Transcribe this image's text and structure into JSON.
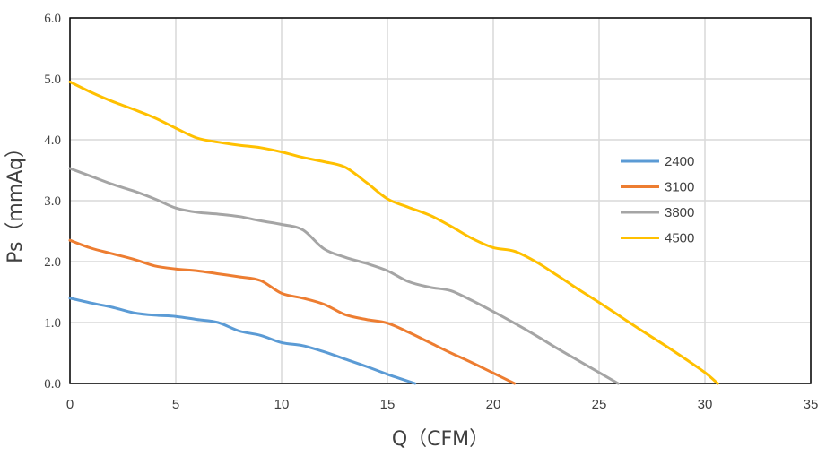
{
  "chart_data": {
    "type": "line",
    "xlabel": "Q（CFM）",
    "ylabel": "Ps（mmAq）",
    "xlim": [
      0,
      35
    ],
    "ylim": [
      0,
      6
    ],
    "xticks": [
      "0",
      "5",
      "10",
      "15",
      "20",
      "25",
      "30",
      "35"
    ],
    "yticks": [
      "0.0",
      "1.0",
      "2.0",
      "3.0",
      "4.0",
      "5.0",
      "6.0"
    ],
    "grid": true,
    "legend_position": "right",
    "series": [
      {
        "name": "2400",
        "color": "#5b9bd5",
        "points": [
          [
            0,
            1.4
          ],
          [
            1,
            1.32
          ],
          [
            2,
            1.25
          ],
          [
            3,
            1.16
          ],
          [
            4,
            1.12
          ],
          [
            5,
            1.1
          ],
          [
            6,
            1.05
          ],
          [
            7,
            1.0
          ],
          [
            8,
            0.86
          ],
          [
            9,
            0.79
          ],
          [
            10,
            0.67
          ],
          [
            11,
            0.62
          ],
          [
            12,
            0.52
          ],
          [
            13,
            0.4
          ],
          [
            14,
            0.28
          ],
          [
            15,
            0.15
          ],
          [
            16.3,
            0.0
          ]
        ]
      },
      {
        "name": "3100",
        "color": "#ed7d31",
        "points": [
          [
            0,
            2.35
          ],
          [
            1,
            2.22
          ],
          [
            2,
            2.13
          ],
          [
            3,
            2.04
          ],
          [
            4,
            1.93
          ],
          [
            5,
            1.88
          ],
          [
            6,
            1.85
          ],
          [
            7,
            1.8
          ],
          [
            8,
            1.75
          ],
          [
            9,
            1.69
          ],
          [
            10,
            1.48
          ],
          [
            11,
            1.4
          ],
          [
            12,
            1.3
          ],
          [
            13,
            1.13
          ],
          [
            14,
            1.05
          ],
          [
            15,
            0.99
          ],
          [
            16,
            0.84
          ],
          [
            17,
            0.67
          ],
          [
            18,
            0.5
          ],
          [
            19,
            0.34
          ],
          [
            20,
            0.17
          ],
          [
            21,
            0.0
          ]
        ]
      },
      {
        "name": "3800",
        "color": "#a5a5a5",
        "points": [
          [
            0,
            3.53
          ],
          [
            1,
            3.4
          ],
          [
            2,
            3.27
          ],
          [
            3,
            3.16
          ],
          [
            4,
            3.03
          ],
          [
            5,
            2.88
          ],
          [
            6,
            2.81
          ],
          [
            7,
            2.78
          ],
          [
            8,
            2.74
          ],
          [
            9,
            2.67
          ],
          [
            10,
            2.61
          ],
          [
            11,
            2.52
          ],
          [
            12,
            2.21
          ],
          [
            13,
            2.07
          ],
          [
            14,
            1.97
          ],
          [
            15,
            1.85
          ],
          [
            16,
            1.67
          ],
          [
            17,
            1.58
          ],
          [
            18,
            1.52
          ],
          [
            19,
            1.36
          ],
          [
            20,
            1.18
          ],
          [
            21,
            0.99
          ],
          [
            22,
            0.79
          ],
          [
            23,
            0.58
          ],
          [
            24,
            0.38
          ],
          [
            25,
            0.18
          ],
          [
            25.9,
            0.0
          ]
        ]
      },
      {
        "name": "4500",
        "color": "#ffc000",
        "points": [
          [
            0,
            4.95
          ],
          [
            1,
            4.78
          ],
          [
            2,
            4.63
          ],
          [
            3,
            4.5
          ],
          [
            4,
            4.36
          ],
          [
            5,
            4.19
          ],
          [
            6,
            4.03
          ],
          [
            7,
            3.96
          ],
          [
            8,
            3.91
          ],
          [
            9,
            3.87
          ],
          [
            10,
            3.8
          ],
          [
            11,
            3.71
          ],
          [
            12,
            3.64
          ],
          [
            13,
            3.55
          ],
          [
            14,
            3.3
          ],
          [
            15,
            3.03
          ],
          [
            16,
            2.89
          ],
          [
            17,
            2.76
          ],
          [
            18,
            2.58
          ],
          [
            19,
            2.38
          ],
          [
            20,
            2.23
          ],
          [
            21,
            2.17
          ],
          [
            22,
            2.0
          ],
          [
            23,
            1.78
          ],
          [
            24,
            1.55
          ],
          [
            25,
            1.33
          ],
          [
            26,
            1.1
          ],
          [
            27,
            0.87
          ],
          [
            28,
            0.65
          ],
          [
            29,
            0.42
          ],
          [
            30,
            0.18
          ],
          [
            30.6,
            0.0
          ]
        ]
      }
    ]
  }
}
